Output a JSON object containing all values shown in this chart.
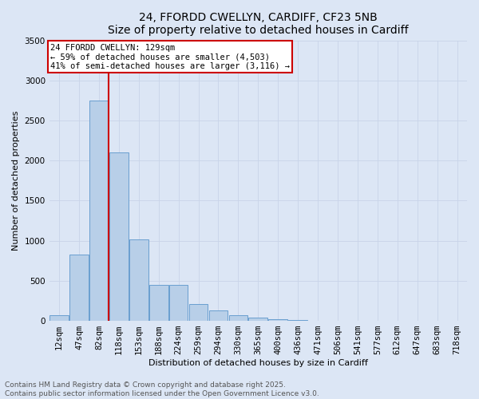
{
  "title_line1": "24, FFORDD CWELLYN, CARDIFF, CF23 5NB",
  "title_line2": "Size of property relative to detached houses in Cardiff",
  "xlabel": "Distribution of detached houses by size in Cardiff",
  "ylabel": "Number of detached properties",
  "categories": [
    "12sqm",
    "47sqm",
    "82sqm",
    "118sqm",
    "153sqm",
    "188sqm",
    "224sqm",
    "259sqm",
    "294sqm",
    "330sqm",
    "365sqm",
    "400sqm",
    "436sqm",
    "471sqm",
    "506sqm",
    "541sqm",
    "577sqm",
    "612sqm",
    "647sqm",
    "683sqm",
    "718sqm"
  ],
  "values": [
    75,
    830,
    2750,
    2100,
    1020,
    450,
    450,
    210,
    130,
    70,
    45,
    20,
    10,
    3,
    1,
    1,
    0,
    0,
    0,
    0,
    0
  ],
  "bar_color": "#b8cfe8",
  "bar_edge_color": "#6a9fd0",
  "vline_x_index": 3,
  "vline_color": "#cc0000",
  "annotation_text": "24 FFORDD CWELLYN: 129sqm\n← 59% of detached houses are smaller (4,503)\n41% of semi-detached houses are larger (3,116) →",
  "annotation_box_edgecolor": "#cc0000",
  "ylim": [
    0,
    3500
  ],
  "yticks": [
    0,
    500,
    1000,
    1500,
    2000,
    2500,
    3000,
    3500
  ],
  "grid_color": "#c8d4e8",
  "background_color": "#dce6f5",
  "fig_background_color": "#dce6f5",
  "footer_line1": "Contains HM Land Registry data © Crown copyright and database right 2025.",
  "footer_line2": "Contains public sector information licensed under the Open Government Licence v3.0.",
  "title_fontsize": 10,
  "axis_label_fontsize": 8,
  "tick_fontsize": 7.5,
  "annotation_fontsize": 7.5,
  "footer_fontsize": 6.5
}
